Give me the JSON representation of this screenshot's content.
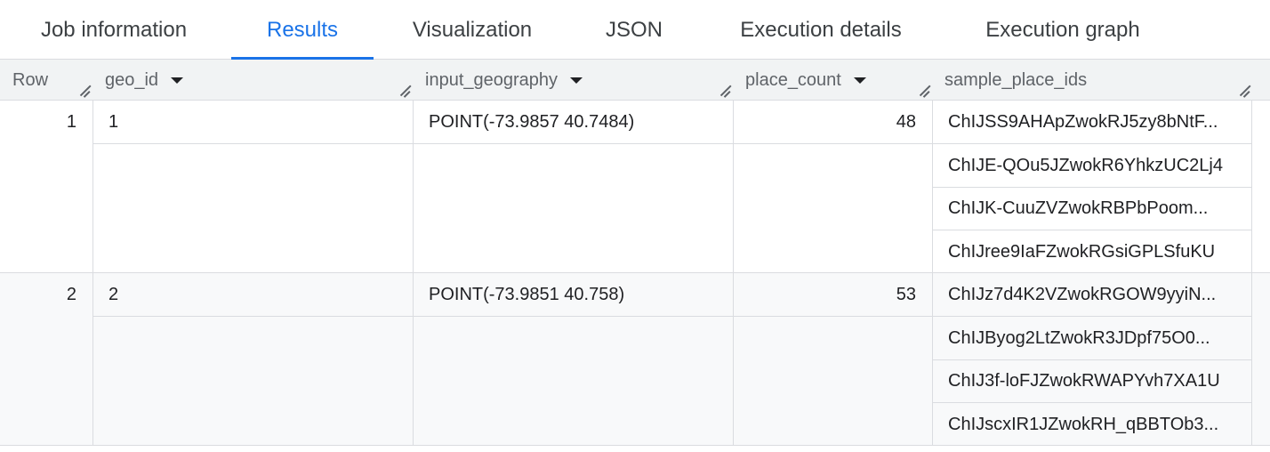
{
  "tabs": [
    {
      "label": "Job information",
      "active": false
    },
    {
      "label": "Results",
      "active": true
    },
    {
      "label": "Visualization",
      "active": false
    },
    {
      "label": "JSON",
      "active": false
    },
    {
      "label": "Execution details",
      "active": false
    },
    {
      "label": "Execution graph",
      "active": false
    }
  ],
  "columns": {
    "row": "Row",
    "geo_id": "geo_id",
    "input_geography": "input_geography",
    "place_count": "place_count",
    "sample_place_ids": "sample_place_ids"
  },
  "rows": [
    {
      "row": "1",
      "geo_id": "1",
      "input_geography": "POINT(-73.9857 40.7484)",
      "place_count": "48",
      "sample_place_ids": [
        "ChIJSS9AHApZwokRJ5zy8bNtF...",
        "ChIJE-QOu5JZwokR6YhkzUC2Lj4",
        "ChIJK-CuuZVZwokRBPbPoom...",
        "ChIJree9IaFZwokRGsiGPLSfuKU"
      ]
    },
    {
      "row": "2",
      "geo_id": "2",
      "input_geography": "POINT(-73.9851 40.758)",
      "place_count": "53",
      "sample_place_ids": [
        "ChIJz7d4K2VZwokRGOW9yyiN...",
        "ChIJByog2LtZwokR3JDpf75O0...",
        "ChIJ3f-loFJZwokRWAPYvh7XA1U",
        "ChIJscxIR1JZwokRH_qBBTOb3..."
      ]
    }
  ],
  "colors": {
    "accent": "#1a73e8",
    "header_bg": "#f1f3f4",
    "alt_row_bg": "#f8f9fa"
  }
}
